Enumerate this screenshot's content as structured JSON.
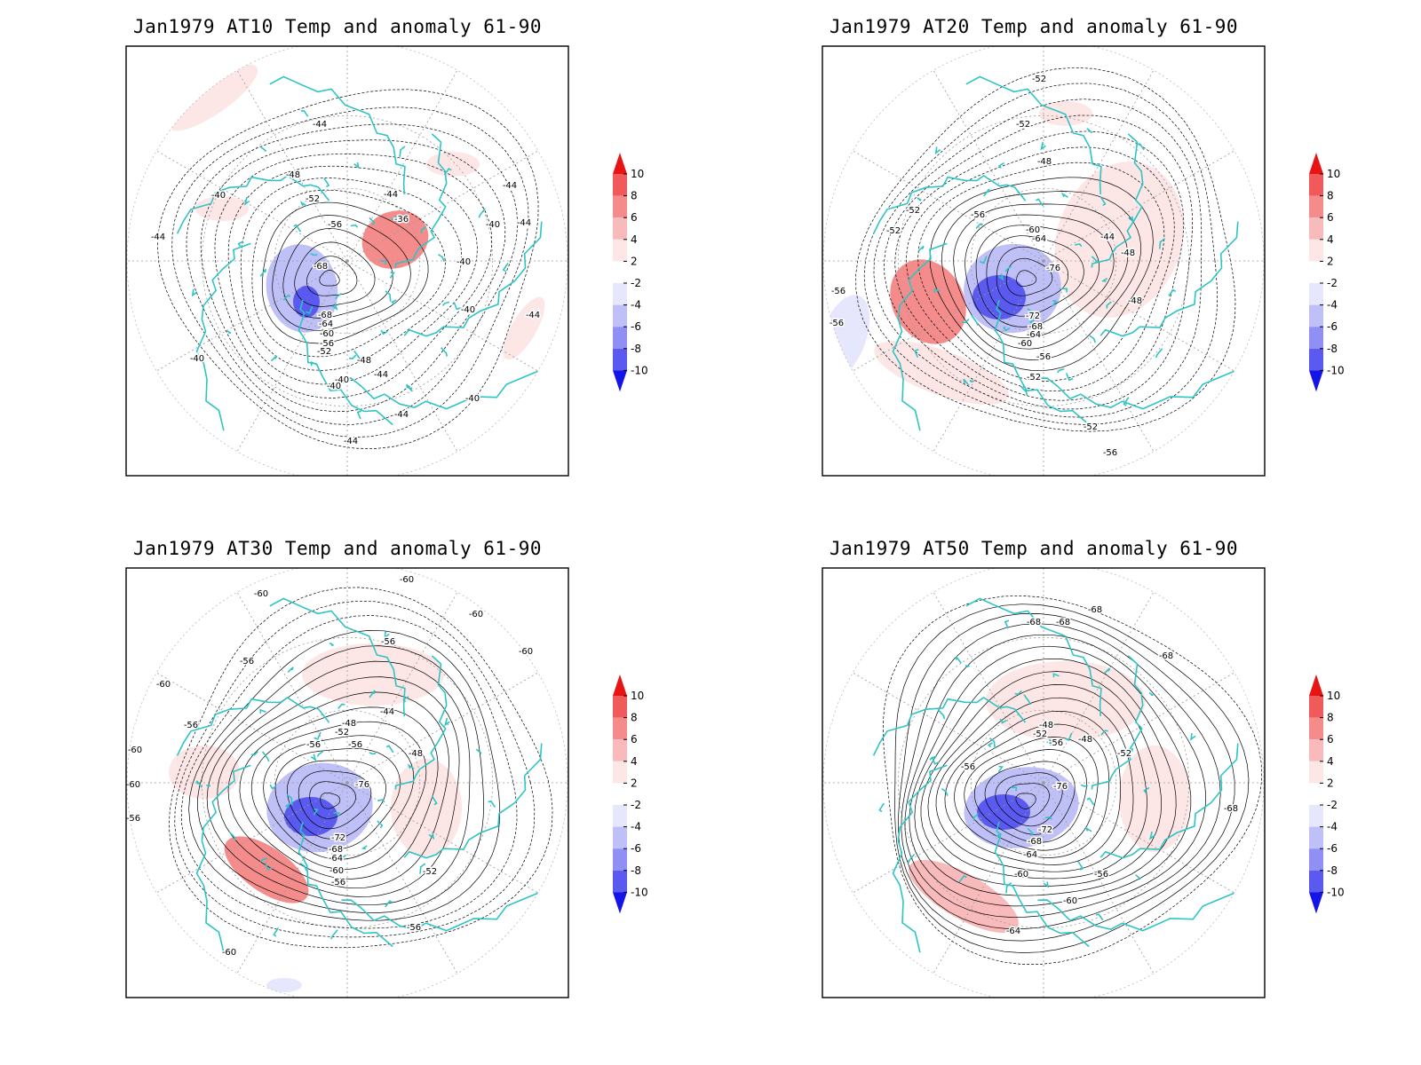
{
  "panels": [
    {
      "title": "Jan1979 AT10 Temp and anomaly 61-90",
      "level": "AT10",
      "contour_labels": [
        "-44",
        "-48",
        "-52",
        "-40",
        "-36",
        "-44",
        "-56",
        "-40",
        "-40",
        "-44",
        "-44",
        "-68",
        "-68",
        "-64",
        "-60",
        "-56",
        "-52",
        "-48",
        "-40",
        "-40",
        "-44",
        "-44",
        "-40",
        "-44",
        "-40",
        "-44",
        "-40",
        "-44"
      ],
      "anomaly_regions": [
        {
          "sign": "positive",
          "level": 4
        },
        {
          "sign": "negative",
          "level": -8
        },
        {
          "sign": "positive",
          "level": 2
        }
      ]
    },
    {
      "title": "Jan1979 AT20 Temp and anomaly 61-90",
      "level": "AT20",
      "contour_labels": [
        "-52",
        "-52",
        "-48",
        "-52",
        "-56",
        "-52",
        "-60",
        "-64",
        "-44",
        "-48",
        "-76",
        "-48",
        "-72",
        "-68",
        "-64",
        "-60",
        "-56",
        "-52",
        "-56",
        "-56",
        "-52",
        "-56"
      ],
      "anomaly_regions": [
        {
          "sign": "positive",
          "level": 4
        },
        {
          "sign": "negative",
          "level": -8
        },
        {
          "sign": "negative",
          "level": -2
        }
      ]
    },
    {
      "title": "Jan1979 AT30 Temp and anomaly 61-90",
      "level": "AT30",
      "contour_labels": [
        "-60",
        "-60",
        "-60",
        "-60",
        "-56",
        "-56",
        "-60",
        "-56",
        "-60",
        "-60",
        "-56",
        "-44",
        "-48",
        "-52",
        "-56",
        "-56",
        "-48",
        "-76",
        "-72",
        "-68",
        "-64",
        "-60",
        "-56",
        "-52",
        "-56",
        "-60"
      ],
      "anomaly_regions": [
        {
          "sign": "positive",
          "level": 4
        },
        {
          "sign": "negative",
          "level": -8
        },
        {
          "sign": "positive",
          "level": 2
        }
      ]
    },
    {
      "title": "Jan1979 AT50 Temp and anomaly 61-90",
      "level": "AT50",
      "contour_labels": [
        "-68",
        "-68",
        "-68",
        "-68",
        "-48",
        "-52",
        "-56",
        "-48",
        "-52",
        "-56",
        "-76",
        "-72",
        "-68",
        "-64",
        "-60",
        "-56",
        "-60",
        "-64",
        "-68"
      ],
      "anomaly_regions": [
        {
          "sign": "positive",
          "level": 2
        },
        {
          "sign": "negative",
          "level": -8
        },
        {
          "sign": "positive",
          "level": 2
        }
      ]
    }
  ],
  "colorbar": {
    "labels": [
      "10",
      "8",
      "6",
      "4",
      "2",
      "-2",
      "-4",
      "-6",
      "-8",
      "-10"
    ],
    "colors": [
      "#e81414",
      "#f05a5a",
      "#f58c8c",
      "#f8baba",
      "#fde6e6",
      "#ffffff",
      "#e6e6fc",
      "#c0c0f8",
      "#9090f4",
      "#5a5af0",
      "#1414e8"
    ]
  },
  "colors": {
    "coastline": "#2ec4c4",
    "contour": "#000000",
    "grid": "#9a9a9a"
  }
}
